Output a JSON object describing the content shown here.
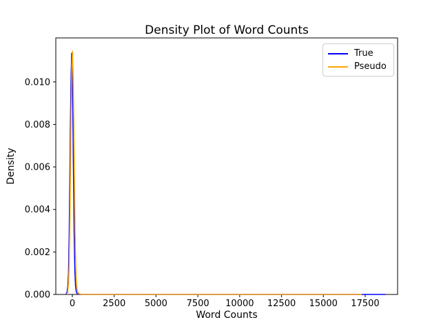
{
  "chart_data": {
    "type": "line",
    "subtype": "kde-density",
    "title": "Density Plot of Word Counts",
    "xlabel": "Word Counts",
    "ylabel": "Density",
    "xlim": [
      -988,
      19436
    ],
    "ylim": [
      0,
      0.01207
    ],
    "grid": false,
    "legend_position": "upper right",
    "xtick_values": [
      0,
      2500,
      5000,
      7500,
      10000,
      12500,
      15000,
      17500
    ],
    "xtick_labels": [
      "0",
      "2500",
      "5000",
      "7500",
      "10000",
      "12500",
      "15000",
      "17500"
    ],
    "ytick_values": [
      0.0,
      0.002,
      0.004,
      0.006,
      0.008,
      0.01
    ],
    "ytick_labels": [
      "0.000",
      "0.002",
      "0.004",
      "0.006",
      "0.008",
      "0.010"
    ],
    "series": [
      {
        "name": "True",
        "color": "#0000ff",
        "peak": {
          "x": -40,
          "y": 0.01135
        },
        "x": [
          -380,
          -320,
          -270,
          -230,
          -190,
          -150,
          -110,
          -75,
          -40,
          -5,
          30,
          70,
          110,
          150,
          190,
          240,
          320,
          500,
          1000,
          2500,
          5000,
          7500,
          10000,
          12500,
          15000,
          17500,
          18700
        ],
        "y": [
          0,
          0.0001,
          0.0004,
          0.001,
          0.0028,
          0.0055,
          0.0083,
          0.0103,
          0.01135,
          0.0105,
          0.0085,
          0.0055,
          0.0028,
          0.0011,
          0.0004,
          0.0001,
          2e-05,
          0,
          0,
          0,
          0,
          0,
          0,
          0,
          0,
          0,
          0
        ]
      },
      {
        "name": "Pseudo",
        "color": "#ffa500",
        "peak": {
          "x": 10,
          "y": 0.01145
        },
        "x": [
          -330,
          -280,
          -230,
          -190,
          -150,
          -110,
          -70,
          -30,
          10,
          50,
          90,
          130,
          175,
          220,
          270,
          350,
          550,
          1000,
          2500,
          5000,
          7500,
          10000,
          12500,
          15000,
          17300
        ],
        "y": [
          0,
          0.0001,
          0.0005,
          0.0013,
          0.0032,
          0.006,
          0.0088,
          0.0108,
          0.01145,
          0.0102,
          0.008,
          0.005,
          0.0024,
          0.0009,
          0.0003,
          5e-05,
          0,
          0,
          0,
          0,
          0,
          0,
          0,
          0,
          0
        ]
      }
    ]
  }
}
